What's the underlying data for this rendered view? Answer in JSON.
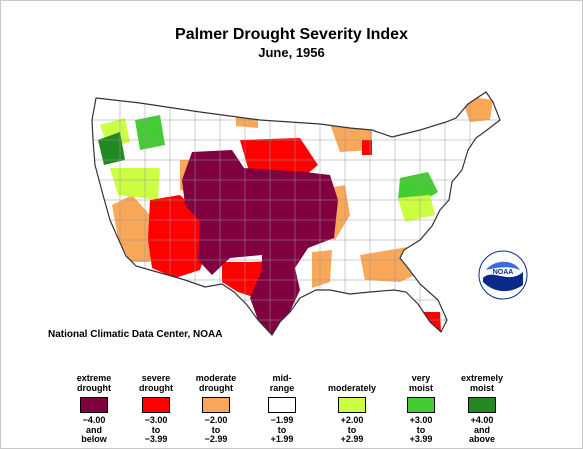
{
  "title": "Palmer Drought Severity Index",
  "subtitle": "June, 1956",
  "credit": "National Climatic Data Center, NOAA",
  "logo_text": "NOAA",
  "legend": [
    {
      "label_top": "extreme",
      "label_bottom": "drought",
      "color": "#800040",
      "range": [
        "−4.00",
        "and",
        "below"
      ]
    },
    {
      "label_top": "severe",
      "label_bottom": "drought",
      "color": "#ff0000",
      "range": [
        "−3.00",
        "to",
        "−3.99"
      ]
    },
    {
      "label_top": "moderate",
      "label_bottom": "drought",
      "color": "#f8a858",
      "range": [
        "−2.00",
        "to",
        "−2.99"
      ]
    },
    {
      "label_top": "mid-",
      "label_bottom": "range",
      "color": "#ffffff",
      "range": [
        "−1.99",
        "to",
        "+1.99"
      ]
    },
    {
      "label_top": "",
      "label_bottom": "moderately",
      "color": "#ccff44",
      "range": [
        "+2.00",
        "to",
        "+2.99"
      ]
    },
    {
      "label_top": "very",
      "label_bottom": "moist",
      "color": "#44cc33",
      "range": [
        "+3.00",
        "to",
        "+3.99"
      ]
    },
    {
      "label_top": "extremely",
      "label_bottom": "moist",
      "color": "#228822",
      "range": [
        "+4.00",
        "and",
        "above"
      ]
    }
  ],
  "colors": {
    "extreme_drought": "#800040",
    "severe_drought": "#ff0000",
    "moderate_drought": "#f8a858",
    "mid_range": "#ffffff",
    "moderately_moist": "#ccff44",
    "very_moist": "#44cc33",
    "extremely_moist": "#228822",
    "outline": "#555555"
  }
}
